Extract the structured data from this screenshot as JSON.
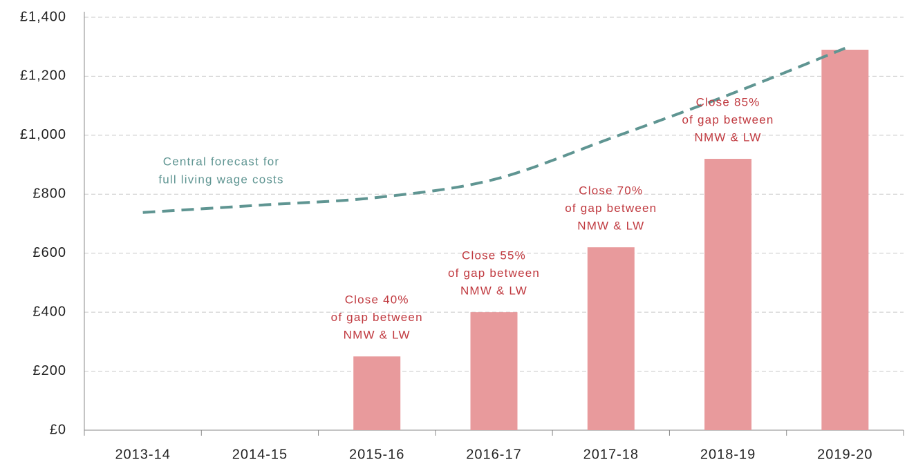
{
  "chart_data": {
    "type": "bar",
    "categories": [
      "2013-14",
      "2014-15",
      "2015-16",
      "2016-17",
      "2017-18",
      "2018-19",
      "2019-20"
    ],
    "series": [
      {
        "type": "bar",
        "color": "#e89a9c",
        "values": [
          null,
          null,
          250,
          400,
          620,
          920,
          1290
        ]
      },
      {
        "type": "line",
        "color": "#5f9592",
        "dashed": true,
        "values": [
          738,
          763,
          789,
          850,
          990,
          1136,
          1295
        ]
      }
    ],
    "ylim": [
      0,
      1400
    ],
    "yticks": [
      {
        "value": 0,
        "label": "£0"
      },
      {
        "value": 200,
        "label": "£200"
      },
      {
        "value": 400,
        "label": "£400"
      },
      {
        "value": 600,
        "label": "£600"
      },
      {
        "value": 800,
        "label": "£800"
      },
      {
        "value": 1000,
        "label": "£1,000"
      },
      {
        "value": 1200,
        "label": "£1,200"
      },
      {
        "value": 1400,
        "label": "£1,400"
      }
    ],
    "grid": true,
    "bar_labels": [
      null,
      null,
      [
        "Close 40%",
        "of gap between",
        "NMW & LW"
      ],
      [
        "Close 55%",
        "of gap between",
        "NMW & LW"
      ],
      [
        "Close 70%",
        "of gap between",
        "NMW & LW"
      ],
      [
        "Close 85%",
        "of gap between",
        "NMW & LW"
      ],
      null
    ],
    "bar_label_color": "#c0393f",
    "line_label": [
      "Central forecast for",
      "full living wage costs"
    ]
  }
}
